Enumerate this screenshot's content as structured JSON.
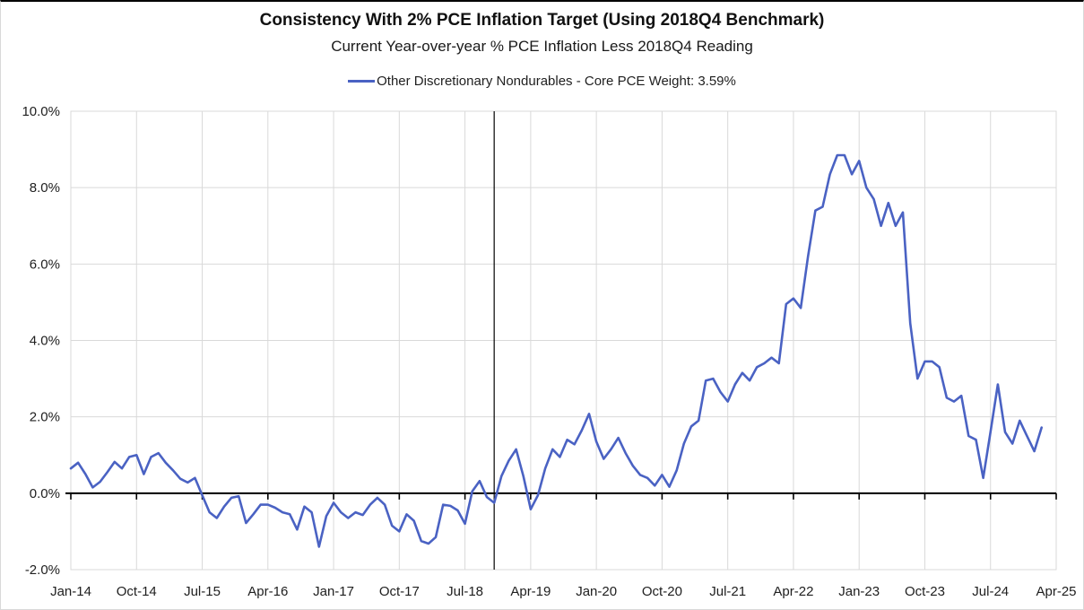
{
  "chart": {
    "title": "Consistency With 2% PCE Inflation Target (Using 2018Q4 Benchmark)",
    "subtitle": "Current Year-over-year % PCE Inflation Less 2018Q4 Reading",
    "legend": {
      "label": "Other Discretionary Nondurables - Core PCE Weight: 3.59%"
    }
  },
  "chart_data": {
    "type": "line",
    "title": "Consistency With 2% PCE Inflation Target (Using 2018Q4 Benchmark)",
    "subtitle": "Current Year-over-year % PCE Inflation Less 2018Q4 Reading",
    "ylabel": "",
    "xlabel": "",
    "ylim": [
      -2,
      10
    ],
    "grid": true,
    "legend_position": "top",
    "x_frequency": "monthly",
    "x_start": "Jan-14",
    "x_end": "Feb-25",
    "x_axis_months_total": 135,
    "x_tick_labels": [
      "Jan-14",
      "Oct-14",
      "Jul-15",
      "Apr-16",
      "Jan-17",
      "Oct-17",
      "Jul-18",
      "Apr-19",
      "Jan-20",
      "Oct-20",
      "Jul-21",
      "Apr-22",
      "Jan-23",
      "Oct-23",
      "Jul-24",
      "Apr-25"
    ],
    "x_tick_month_indices": [
      0,
      9,
      18,
      27,
      36,
      45,
      54,
      63,
      72,
      81,
      90,
      99,
      108,
      117,
      126,
      135
    ],
    "y_tick_labels": [
      "10.0%",
      "8.0%",
      "6.0%",
      "4.0%",
      "2.0%",
      "0.0%",
      "-2.0%"
    ],
    "y_tick_values": [
      10,
      8,
      6,
      4,
      2,
      0,
      -2
    ],
    "benchmark_vline_month_index": 58,
    "benchmark_vline_label": "2018Q4 benchmark",
    "series": [
      {
        "name": "Other Discretionary Nondurables - Core PCE Weight: 3.59%",
        "unit": "percent",
        "values": [
          0.65,
          0.8,
          0.5,
          0.15,
          0.3,
          0.55,
          0.82,
          0.65,
          0.95,
          1.0,
          0.5,
          0.95,
          1.05,
          0.8,
          0.6,
          0.38,
          0.28,
          0.4,
          -0.05,
          -0.5,
          -0.65,
          -0.35,
          -0.12,
          -0.08,
          -0.78,
          -0.55,
          -0.3,
          -0.3,
          -0.38,
          -0.5,
          -0.55,
          -0.95,
          -0.35,
          -0.5,
          -1.4,
          -0.6,
          -0.25,
          -0.5,
          -0.65,
          -0.5,
          -0.57,
          -0.3,
          -0.12,
          -0.3,
          -0.85,
          -1.0,
          -0.55,
          -0.72,
          -1.25,
          -1.32,
          -1.15,
          -0.3,
          -0.33,
          -0.45,
          -0.8,
          0.05,
          0.32,
          -0.1,
          -0.25,
          0.45,
          0.85,
          1.15,
          0.45,
          -0.42,
          -0.05,
          0.65,
          1.15,
          0.95,
          1.4,
          1.28,
          1.65,
          2.08,
          1.35,
          0.9,
          1.15,
          1.45,
          1.05,
          0.72,
          0.48,
          0.4,
          0.2,
          0.48,
          0.17,
          0.6,
          1.3,
          1.75,
          1.9,
          2.95,
          3.0,
          2.65,
          2.4,
          2.85,
          3.15,
          2.95,
          3.3,
          3.4,
          3.55,
          3.4,
          4.95,
          5.1,
          4.85,
          6.2,
          7.4,
          7.5,
          8.35,
          8.85,
          8.85,
          8.35,
          8.7,
          8.0,
          7.7,
          7.0,
          7.6,
          7.0,
          7.35,
          4.45,
          3.0,
          3.45,
          3.45,
          3.3,
          2.5,
          2.4,
          2.55,
          1.5,
          1.4,
          0.4,
          1.6,
          2.85,
          1.6,
          1.3,
          1.9,
          1.5,
          1.1,
          1.72
        ]
      }
    ],
    "colors": {
      "line": "#4a62c3",
      "gridline": "#d9d9d9",
      "axis": "#000000",
      "plot_border": "#d9d9d9",
      "text": "#202020"
    }
  }
}
